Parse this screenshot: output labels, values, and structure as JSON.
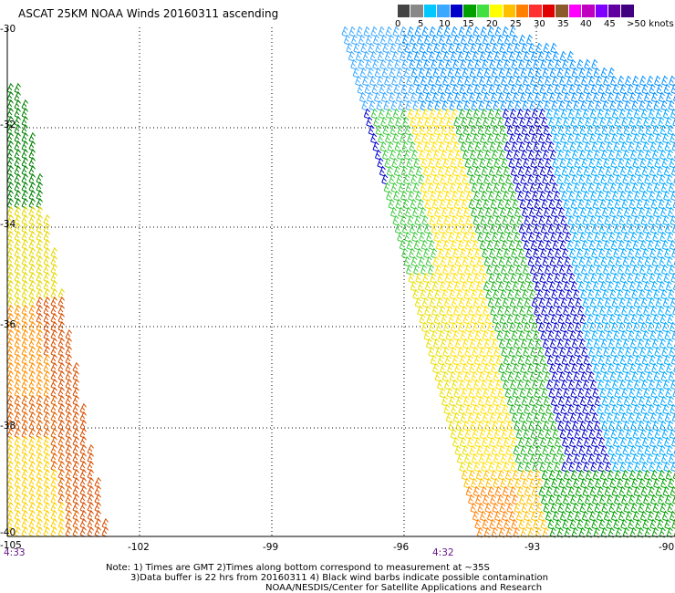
{
  "title": "ASCAT 25KM NOAA Winds 20160311 ascending",
  "legend": {
    "labels": [
      "0",
      "5",
      "10",
      "15",
      "20",
      "25",
      "30",
      "35",
      "40",
      "45",
      ">50 knots"
    ],
    "colors": [
      "#444444",
      "#888888",
      "#00c8ff",
      "#3aa8ff",
      "#0000c8",
      "#00a000",
      "#40e040",
      "#ffff00",
      "#ffc000",
      "#ff8000",
      "#ff3030",
      "#e00000",
      "#8b5a2b",
      "#ff00ff",
      "#c000c0",
      "#8000ff",
      "#6000a0",
      "#400080"
    ]
  },
  "axes": {
    "lat_labels": [
      "-30",
      "-32",
      "-34",
      "-36",
      "-38",
      "-40"
    ],
    "lon_labels": [
      "-105",
      "-102",
      "-99",
      "-96",
      "-93",
      "-90"
    ]
  },
  "times": {
    "left": "4:33",
    "right": "4:32"
  },
  "notes": [
    "Note: 1) Times are GMT 2)Times along bottom correspond to measurement at ~35S",
    "3)Data buffer is 22 hrs from 20160311 4) Black wind barbs indicate possible contamination",
    "NOAA/NESDIS/Center for Satellite Applications and Research"
  ]
}
